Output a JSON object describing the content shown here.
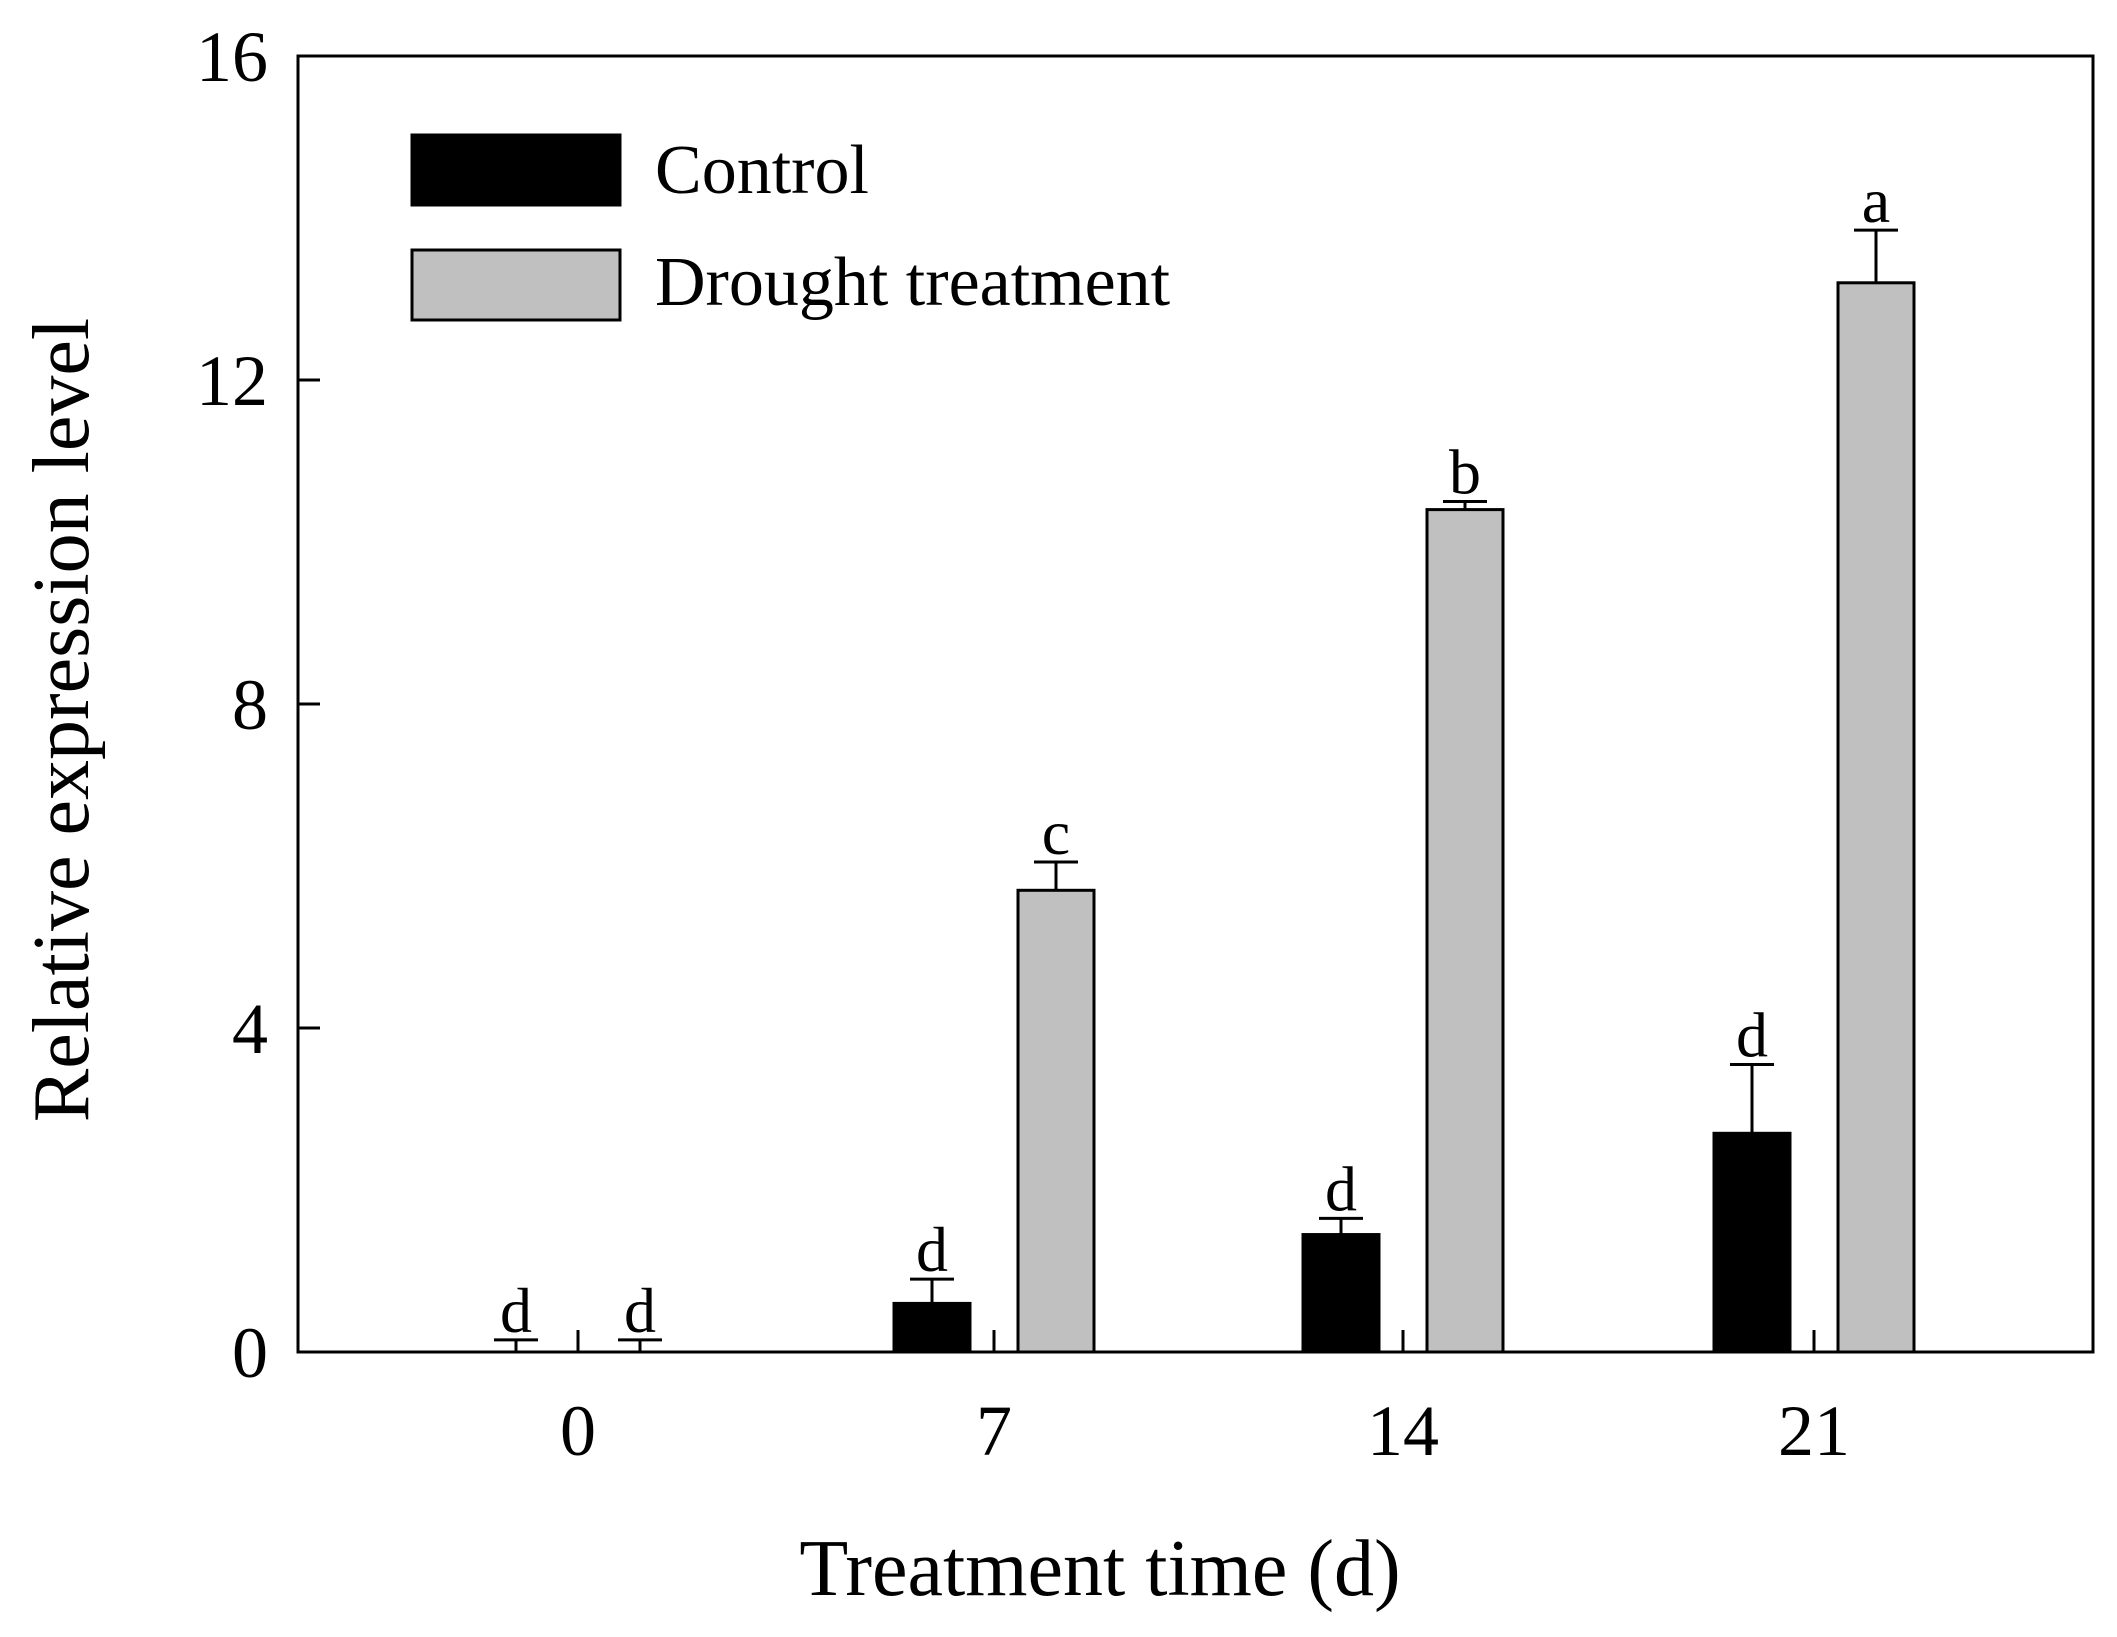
{
  "chart_data": {
    "type": "bar",
    "title": "",
    "xlabel": "Treatment time (d)",
    "ylabel": "Relative expression level",
    "categories": [
      "0",
      "7",
      "14",
      "21"
    ],
    "ylim": [
      0,
      16
    ],
    "yticks": [
      "0",
      "4",
      "8",
      "12",
      "16"
    ],
    "legend_position": "top-left",
    "series": [
      {
        "name": "Control",
        "color": "#000000",
        "values": [
          0,
          0.6,
          1.45,
          2.7
        ],
        "errors": [
          0.15,
          0.3,
          0.2,
          0.85
        ],
        "significance": [
          "d",
          "d",
          "d",
          "d"
        ]
      },
      {
        "name": "Drought treatment",
        "color": "#c0c0c0",
        "values": [
          0,
          5.7,
          10.4,
          13.2
        ],
        "errors": [
          0.15,
          0.35,
          0.1,
          0.65
        ],
        "significance": [
          "d",
          "c",
          "b",
          "a"
        ]
      }
    ]
  }
}
